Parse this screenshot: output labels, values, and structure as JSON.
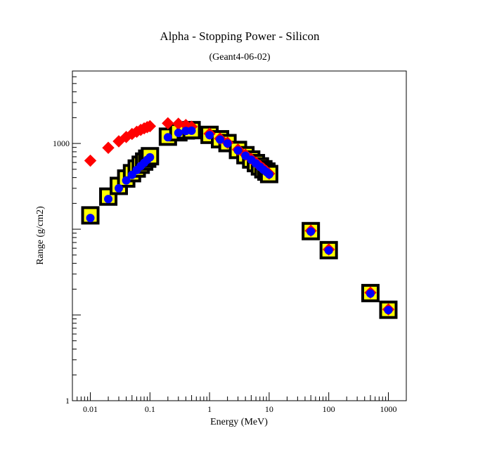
{
  "chart_data": {
    "type": "scatter",
    "title": "Alpha - Stopping Power - Silicon",
    "subtitle": "(Geant4-06-02)",
    "xlabel": "Energy (MeV)",
    "ylabel": "Range (g/cm2)",
    "xscale": "log",
    "yscale": "log",
    "xlim": [
      0.005,
      2000
    ],
    "ylim": [
      1,
      7000
    ],
    "grid": false,
    "legend": "none",
    "x_ticks": [
      {
        "value": 0.01,
        "label": "0.01"
      },
      {
        "value": 0.1,
        "label": "0.1"
      },
      {
        "value": 1,
        "label": "1"
      },
      {
        "value": 10,
        "label": "10"
      },
      {
        "value": 100,
        "label": "100"
      },
      {
        "value": 1000,
        "label": "1000"
      }
    ],
    "y_ticks": [
      {
        "value": 1,
        "label": "1"
      },
      {
        "value": 1000,
        "label": "1000"
      }
    ],
    "series": [
      {
        "marker": "square",
        "fill": "#ffff00",
        "stroke": "#000000",
        "points": [
          [
            0.01,
            145
          ],
          [
            0.02,
            240
          ],
          [
            0.03,
            320
          ],
          [
            0.04,
            390
          ],
          [
            0.05,
            450
          ],
          [
            0.06,
            510
          ],
          [
            0.07,
            565
          ],
          [
            0.08,
            615
          ],
          [
            0.09,
            665
          ],
          [
            0.1,
            710
          ],
          [
            0.2,
            1200
          ],
          [
            0.3,
            1350
          ],
          [
            0.4,
            1420
          ],
          [
            0.5,
            1430
          ],
          [
            1.0,
            1260
          ],
          [
            1.5,
            1120
          ],
          [
            2.0,
            1010
          ],
          [
            3.0,
            840
          ],
          [
            4.0,
            730
          ],
          [
            5.0,
            650
          ],
          [
            6.0,
            590
          ],
          [
            7.0,
            540
          ],
          [
            8.0,
            500
          ],
          [
            9.0,
            470
          ],
          [
            10.0,
            440
          ],
          [
            50,
            95
          ],
          [
            100,
            57
          ],
          [
            500,
            18
          ],
          [
            1000,
            11.5
          ]
        ]
      },
      {
        "marker": "diamond",
        "fill": "#ff0000",
        "stroke": "#ff0000",
        "points": [
          [
            0.01,
            630
          ],
          [
            0.02,
            890
          ],
          [
            0.03,
            1060
          ],
          [
            0.04,
            1190
          ],
          [
            0.05,
            1290
          ],
          [
            0.06,
            1370
          ],
          [
            0.07,
            1440
          ],
          [
            0.08,
            1500
          ],
          [
            0.09,
            1550
          ],
          [
            0.1,
            1590
          ],
          [
            0.2,
            1720
          ],
          [
            0.3,
            1700
          ],
          [
            0.4,
            1640
          ],
          [
            0.5,
            1570
          ],
          [
            1.0,
            1300
          ],
          [
            1.5,
            1140
          ],
          [
            2.0,
            1020
          ],
          [
            3.0,
            850
          ],
          [
            4.0,
            740
          ],
          [
            5.0,
            660
          ],
          [
            6.0,
            600
          ],
          [
            7.0,
            550
          ],
          [
            8.0,
            510
          ],
          [
            9.0,
            475
          ],
          [
            10.0,
            445
          ],
          [
            50,
            96
          ],
          [
            100,
            58
          ],
          [
            500,
            18.2
          ],
          [
            1000,
            11.6
          ]
        ]
      },
      {
        "marker": "circle",
        "fill": "#0000ff",
        "stroke": "#0000ff",
        "points": [
          [
            0.01,
            135
          ],
          [
            0.02,
            225
          ],
          [
            0.03,
            300
          ],
          [
            0.04,
            370
          ],
          [
            0.05,
            430
          ],
          [
            0.06,
            490
          ],
          [
            0.07,
            545
          ],
          [
            0.08,
            595
          ],
          [
            0.09,
            645
          ],
          [
            0.1,
            690
          ],
          [
            0.2,
            1180
          ],
          [
            0.3,
            1330
          ],
          [
            0.4,
            1400
          ],
          [
            0.5,
            1410
          ],
          [
            1.0,
            1250
          ],
          [
            1.5,
            1110
          ],
          [
            2.0,
            1000
          ],
          [
            3.0,
            830
          ],
          [
            4.0,
            720
          ],
          [
            5.0,
            645
          ],
          [
            6.0,
            585
          ],
          [
            7.0,
            535
          ],
          [
            8.0,
            495
          ],
          [
            9.0,
            465
          ],
          [
            10.0,
            435
          ],
          [
            50,
            94
          ],
          [
            100,
            56.5
          ],
          [
            500,
            17.8
          ],
          [
            1000,
            11.4
          ]
        ]
      }
    ]
  }
}
